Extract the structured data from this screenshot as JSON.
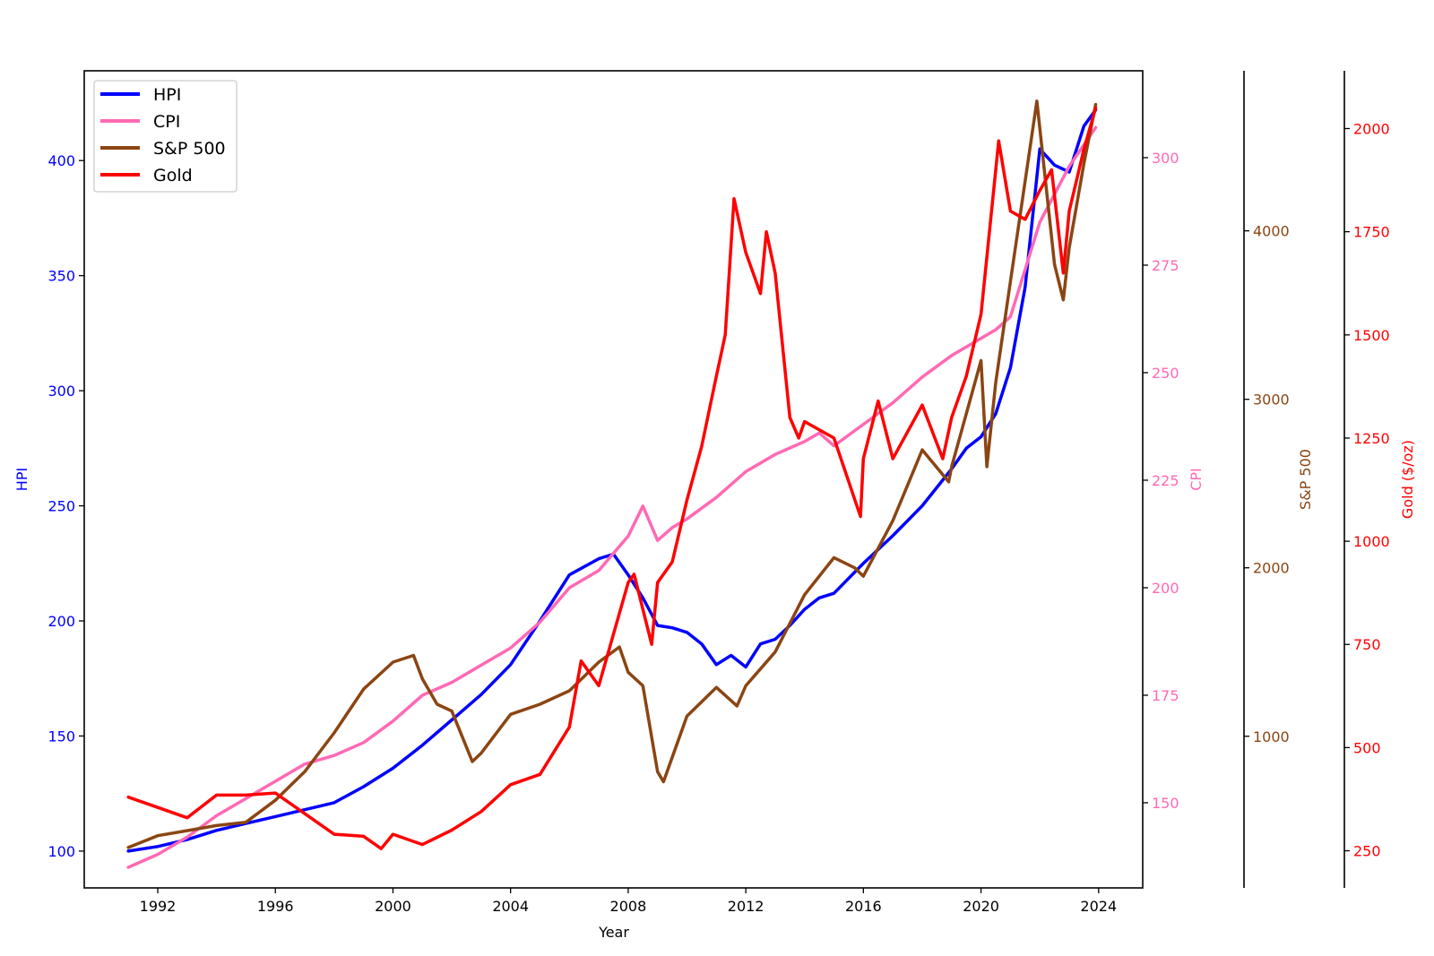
{
  "chart_data": {
    "type": "line",
    "title": "",
    "xlabel": "Year",
    "x_ticks": [
      1992,
      1996,
      2000,
      2004,
      2008,
      2012,
      2016,
      2020,
      2024
    ],
    "xlim": [
      1989.5,
      2025.5
    ],
    "legend": {
      "placement": "top-left",
      "entries": [
        "HPI",
        "CPI",
        "S&P 500",
        "Gold"
      ]
    },
    "grid": false,
    "axes": {
      "hpi": {
        "label": "HPI",
        "color": "#0000ff",
        "ylim": [
          84,
          439
        ],
        "ticks": [
          100,
          150,
          200,
          250,
          300,
          350,
          400
        ]
      },
      "cpi": {
        "label": "CPI",
        "color": "#ff69b4",
        "ylim": [
          130.2,
          320.2
        ],
        "ticks": [
          150,
          175,
          200,
          225,
          250,
          275,
          300
        ]
      },
      "sp500": {
        "label": "S&P 500",
        "color": "#8b4513",
        "ylim": [
          100,
          4950
        ],
        "ticks": [
          1000,
          2000,
          3000,
          4000
        ]
      },
      "gold": {
        "label": "Gold ($/oz)",
        "color": "#ff0000",
        "ylim": [
          160,
          2140
        ],
        "ticks": [
          250,
          500,
          750,
          1000,
          1250,
          1500,
          1750,
          2000
        ]
      }
    },
    "series": [
      {
        "name": "HPI",
        "axis": "hpi",
        "color": "#0000ff",
        "x": [
          1991.0,
          1992.0,
          1993.0,
          1994.0,
          1995.0,
          1996.0,
          1997.0,
          1998.0,
          1999.0,
          2000.0,
          2001.0,
          2002.0,
          2003.0,
          2004.0,
          2005.0,
          2006.0,
          2007.0,
          2007.5,
          2008.0,
          2008.5,
          2009.0,
          2009.5,
          2010.0,
          2010.5,
          2011.0,
          2011.5,
          2012.0,
          2012.5,
          2013.0,
          2013.5,
          2014.0,
          2014.5,
          2015.0,
          2016.0,
          2017.0,
          2018.0,
          2019.0,
          2019.5,
          2020.0,
          2020.5,
          2021.0,
          2021.5,
          2022.0,
          2022.5,
          2023.0,
          2023.5,
          2023.9
        ],
        "y": [
          100,
          102,
          105,
          109,
          112,
          115,
          118,
          121,
          128,
          136,
          146,
          157,
          168,
          181,
          200,
          220,
          227,
          229,
          220,
          210,
          198,
          197,
          195,
          190,
          181,
          185,
          180,
          190,
          192,
          198,
          205,
          210,
          212,
          225,
          237,
          250,
          266,
          275,
          280,
          290,
          310,
          345,
          405,
          398,
          395,
          415,
          422
        ]
      },
      {
        "name": "CPI",
        "axis": "cpi",
        "color": "#ff69b4",
        "x": [
          1991.0,
          1992.0,
          1993.0,
          1994.0,
          1995.0,
          1996.0,
          1997.0,
          1998.0,
          1999.0,
          2000.0,
          2001.0,
          2002.0,
          2003.0,
          2004.0,
          2005.0,
          2006.0,
          2007.0,
          2008.0,
          2008.5,
          2009.0,
          2009.5,
          2010.0,
          2011.0,
          2012.0,
          2013.0,
          2014.0,
          2014.5,
          2015.0,
          2016.0,
          2017.0,
          2018.0,
          2019.0,
          2020.0,
          2020.5,
          2021.0,
          2022.0,
          2023.0,
          2023.9
        ],
        "y": [
          135,
          138,
          142,
          147,
          151,
          155,
          159,
          161,
          164,
          169,
          175,
          178,
          182,
          186,
          192,
          200,
          204,
          212,
          219,
          211,
          214,
          216,
          221,
          227,
          231,
          234,
          236,
          233,
          238,
          243,
          249,
          254,
          258,
          260,
          263,
          285,
          298,
          307
        ]
      },
      {
        "name": "S&P 500",
        "axis": "sp500",
        "color": "#8b4513",
        "x": [
          1991.0,
          1992.0,
          1993.0,
          1994.0,
          1995.0,
          1996.0,
          1997.0,
          1998.0,
          1999.0,
          2000.0,
          2000.7,
          2001.0,
          2001.5,
          2002.0,
          2002.7,
          2003.0,
          2004.0,
          2005.0,
          2006.0,
          2007.0,
          2007.7,
          2008.0,
          2008.5,
          2009.0,
          2009.2,
          2010.0,
          2011.0,
          2011.7,
          2012.0,
          2013.0,
          2014.0,
          2015.0,
          2015.7,
          2016.0,
          2017.0,
          2018.0,
          2018.9,
          2019.0,
          2020.0,
          2020.2,
          2020.5,
          2021.0,
          2021.9,
          2022.5,
          2022.8,
          2023.0,
          2023.5,
          2023.9
        ],
        "y": [
          340,
          410,
          440,
          470,
          490,
          620,
          790,
          1020,
          1280,
          1440,
          1480,
          1340,
          1190,
          1150,
          850,
          900,
          1130,
          1190,
          1270,
          1440,
          1530,
          1380,
          1300,
          790,
          730,
          1120,
          1290,
          1180,
          1300,
          1500,
          1840,
          2060,
          2000,
          1950,
          2280,
          2700,
          2510,
          2600,
          3230,
          2600,
          3100,
          3700,
          4770,
          3800,
          3590,
          3900,
          4400,
          4750
        ]
      },
      {
        "name": "Gold",
        "axis": "gold",
        "color": "#ff0000",
        "x": [
          1991.0,
          1992.0,
          1993.0,
          1994.0,
          1995.0,
          1996.0,
          1997.0,
          1998.0,
          1999.0,
          1999.6,
          2000.0,
          2001.0,
          2002.0,
          2003.0,
          2004.0,
          2005.0,
          2006.0,
          2006.4,
          2007.0,
          2008.0,
          2008.2,
          2008.8,
          2009.0,
          2009.5,
          2010.0,
          2010.5,
          2011.0,
          2011.3,
          2011.6,
          2012.0,
          2012.5,
          2012.7,
          2013.0,
          2013.5,
          2013.8,
          2014.0,
          2015.0,
          2015.9,
          2016.0,
          2016.5,
          2017.0,
          2018.0,
          2018.7,
          2019.0,
          2019.5,
          2020.0,
          2020.6,
          2021.0,
          2021.5,
          2022.0,
          2022.4,
          2022.8,
          2023.0,
          2023.5,
          2023.9
        ],
        "y": [
          380,
          355,
          330,
          385,
          385,
          390,
          340,
          290,
          285,
          255,
          290,
          265,
          300,
          345,
          410,
          435,
          550,
          710,
          650,
          900,
          920,
          750,
          900,
          950,
          1100,
          1230,
          1400,
          1500,
          1830,
          1700,
          1600,
          1750,
          1650,
          1300,
          1250,
          1290,
          1250,
          1060,
          1200,
          1340,
          1200,
          1330,
          1200,
          1300,
          1400,
          1550,
          1970,
          1800,
          1780,
          1850,
          1900,
          1650,
          1800,
          1950,
          2050
        ]
      }
    ]
  }
}
